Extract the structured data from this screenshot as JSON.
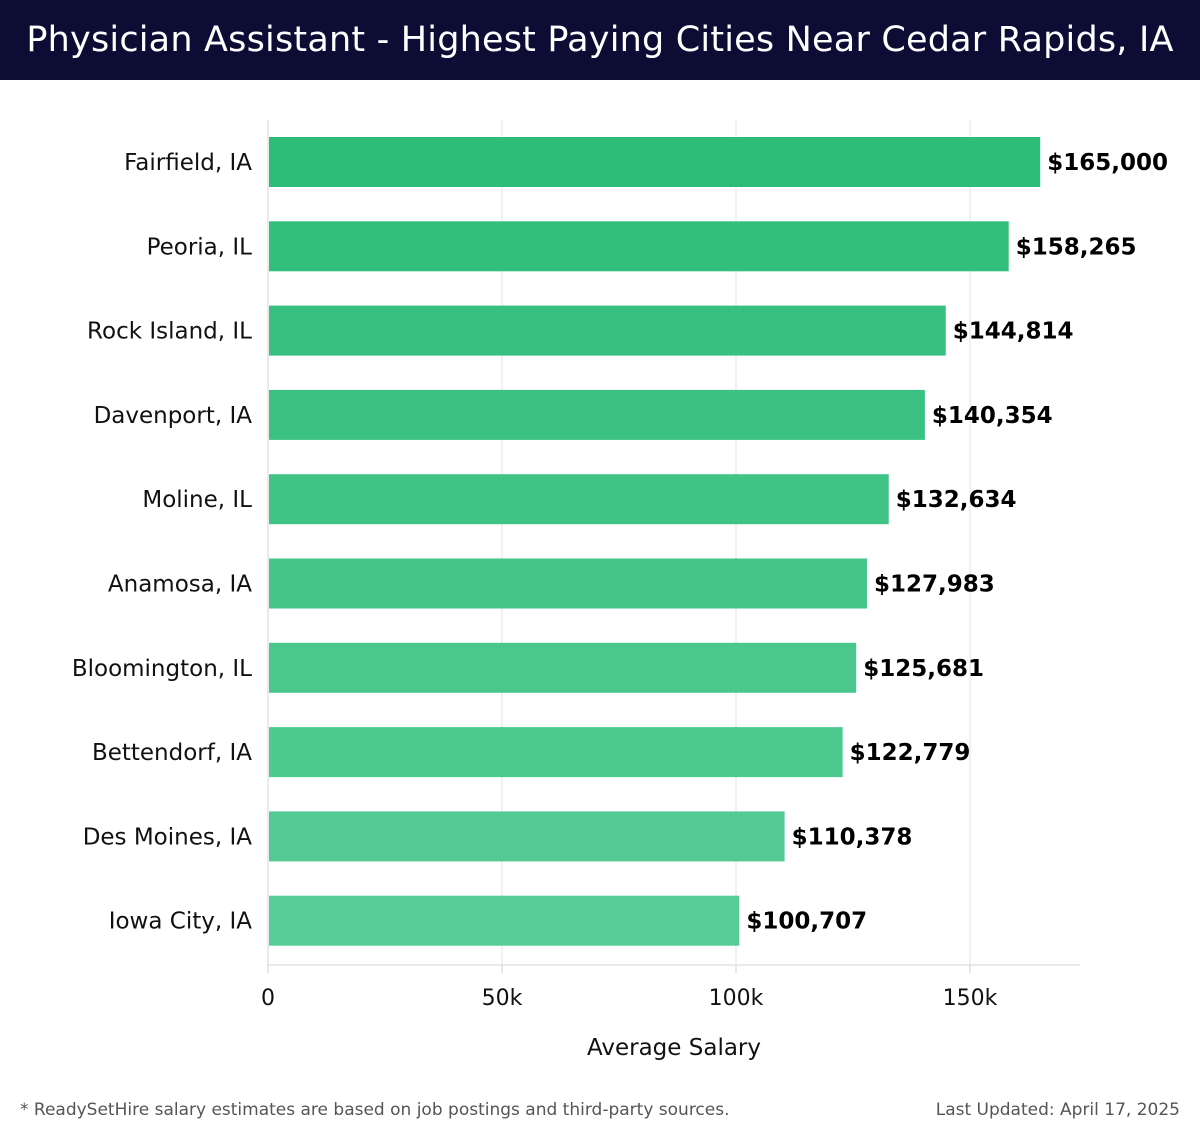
{
  "header": {
    "title": "Physician Assistant - Highest Paying Cities Near Cedar Rapids, IA"
  },
  "footer": {
    "note": "* ReadySetHire salary estimates are based on job postings and third-party sources.",
    "updated": "Last Updated: April 17, 2025"
  },
  "colors": {
    "header_bg": "#0c0c35",
    "bar_dark": "#2dbd78",
    "bar_light": "#58cc97"
  },
  "chart_data": {
    "type": "bar",
    "orientation": "horizontal",
    "title": "Physician Assistant - Highest Paying Cities Near Cedar Rapids, IA",
    "xlabel": "Average Salary",
    "ylabel": "",
    "xlim": [
      0,
      173500
    ],
    "grid": true,
    "x_ticks": [
      {
        "value": 0,
        "label": "0"
      },
      {
        "value": 50000,
        "label": "50k"
      },
      {
        "value": 100000,
        "label": "100k"
      },
      {
        "value": 150000,
        "label": "150k"
      }
    ],
    "categories": [
      "Fairfield, IA",
      "Peoria, IL",
      "Rock Island, IL",
      "Davenport, IA",
      "Moline, IL",
      "Anamosa, IA",
      "Bloomington, IL",
      "Bettendorf, IA",
      "Des Moines, IA",
      "Iowa City, IA"
    ],
    "values": [
      165000,
      158265,
      144814,
      140354,
      132634,
      127983,
      125681,
      122779,
      110378,
      100707
    ],
    "value_labels": [
      "$165,000",
      "$158,265",
      "$144,814",
      "$140,354",
      "$132,634",
      "$127,983",
      "$125,681",
      "$122,779",
      "$110,378",
      "$100,707"
    ]
  }
}
